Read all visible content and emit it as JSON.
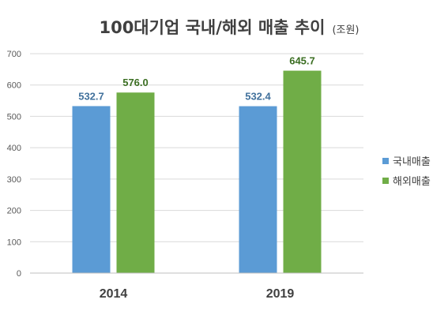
{
  "chart_data": {
    "type": "bar",
    "title": "100대기업 국내/해외 매출 추이",
    "title_unit": "(조원)",
    "categories": [
      "2014",
      "2019"
    ],
    "series": [
      {
        "name": "국내매출",
        "values": [
          532.7,
          532.4
        ],
        "labels": [
          "532.7",
          "532.4"
        ],
        "color": "#5b9bd5",
        "label_color": "#41719c"
      },
      {
        "name": "해외매출",
        "values": [
          576.0,
          645.7
        ],
        "labels": [
          "576.0",
          "645.7"
        ],
        "color": "#70ad47",
        "label_color": "#3b6e22"
      }
    ],
    "yticks": [
      "0",
      "100",
      "200",
      "300",
      "400",
      "500",
      "600",
      "700"
    ],
    "ylim": [
      0,
      700
    ],
    "grid": true,
    "legend_position": "right"
  }
}
